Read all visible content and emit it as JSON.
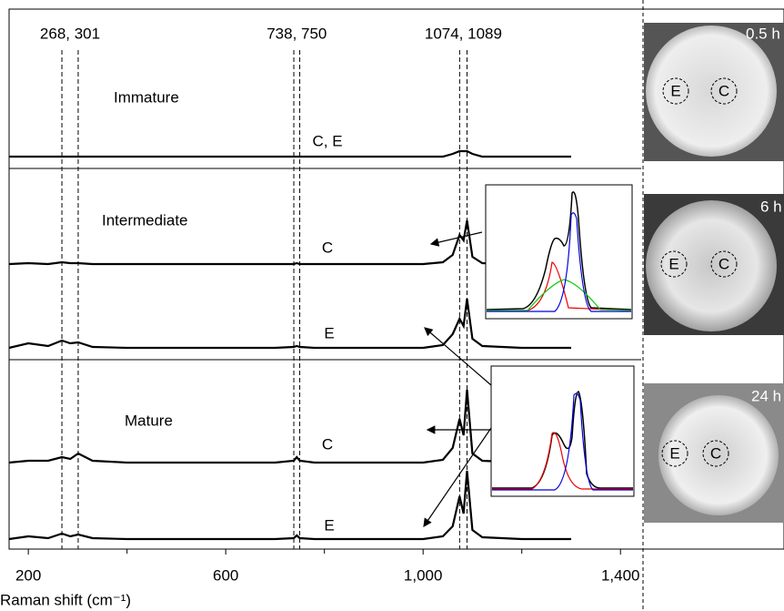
{
  "chart_data": {
    "type": "line",
    "xlabel": "Raman shift (cm⁻¹)",
    "xlim": [
      161,
      1442
    ],
    "xticks": [
      200,
      600,
      {
        "value": 1000,
        "label": "1,000"
      },
      {
        "value": 1400,
        "label": "1,400"
      }
    ],
    "xminor_ticks": [
      400,
      800,
      1200
    ],
    "peak_lines": [
      268,
      301,
      738,
      750,
      1074,
      1089
    ],
    "peak_labels": [
      "268, 301",
      "738, 750",
      "1074, 1089"
    ],
    "x": [
      161,
      200,
      240,
      268,
      285,
      301,
      330,
      400,
      500,
      600,
      700,
      738,
      744,
      750,
      780,
      900,
      1000,
      1040,
      1060,
      1074,
      1082,
      1089,
      1100,
      1120,
      1200,
      1300
    ],
    "panels": [
      {
        "label": "Immature",
        "series": [
          {
            "name": "C, E",
            "color": "#000000",
            "values": [
              0,
              0,
              0,
              0,
              0,
              0,
              0,
              0,
              0,
              0,
              0,
              0,
              0,
              0,
              0,
              0,
              0,
              0,
              3,
              6,
              6,
              6,
              3,
              0,
              0,
              0
            ]
          }
        ]
      },
      {
        "label": "Intermediate",
        "series": [
          {
            "name": "C",
            "color": "#000000",
            "values": [
              0,
              1,
              0,
              2,
              1,
              1,
              0,
              0,
              0,
              0,
              0,
              0,
              1,
              0,
              0,
              0,
              0,
              2,
              10,
              32,
              26,
              48,
              8,
              1,
              0,
              0
            ]
          },
          {
            "name": "E",
            "color": "#000000",
            "values": [
              0,
              5,
              2,
              8,
              5,
              6,
              1,
              0,
              0,
              0,
              0,
              1,
              2,
              1,
              0,
              0,
              0,
              3,
              15,
              32,
              24,
              54,
              10,
              2,
              0,
              0
            ]
          }
        ]
      },
      {
        "label": "Mature",
        "series": [
          {
            "name": "C",
            "color": "#000000",
            "values": [
              0,
              2,
              2,
              6,
              4,
              10,
              2,
              0,
              0,
              0,
              0,
              2,
              6,
              2,
              0,
              0,
              0,
              3,
              16,
              48,
              30,
              80,
              10,
              2,
              0,
              0
            ]
          },
          {
            "name": "E",
            "color": "#000000",
            "values": [
              0,
              3,
              1,
              6,
              3,
              5,
              1,
              0,
              0,
              0,
              0,
              1,
              4,
              1,
              0,
              0,
              0,
              3,
              14,
              47,
              28,
              75,
              10,
              2,
              0,
              0
            ]
          }
        ]
      }
    ]
  },
  "micrographs": [
    {
      "time": "0.5 h",
      "edge": "E",
      "center": "C"
    },
    {
      "time": "6 h",
      "edge": "E",
      "center": "C"
    },
    {
      "time": "24 h",
      "edge": "E",
      "center": "C"
    }
  ]
}
